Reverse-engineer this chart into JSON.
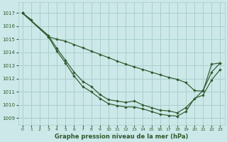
{
  "bg_color": "#cce8e8",
  "grid_color": "#aacfcf",
  "line_color": "#2d5a2d",
  "xlabel": "Graphe pression niveau de la mer (hPa)",
  "xlim": [
    -0.5,
    23.5
  ],
  "ylim": [
    1008.5,
    1017.8
  ],
  "yticks": [
    1009,
    1010,
    1011,
    1012,
    1013,
    1014,
    1015,
    1016,
    1017
  ],
  "xticks": [
    0,
    1,
    2,
    3,
    4,
    5,
    6,
    7,
    8,
    9,
    10,
    11,
    12,
    13,
    14,
    15,
    16,
    17,
    18,
    19,
    20,
    21,
    22,
    23
  ],
  "s1": {
    "x": [
      0,
      1
    ],
    "y": [
      1017.0,
      1016.5
    ]
  },
  "s2": {
    "x": [
      0,
      3,
      4,
      5,
      6,
      7,
      8,
      9,
      10,
      11,
      12,
      13,
      14,
      15,
      16,
      17,
      18,
      19,
      21,
      22,
      23
    ],
    "y": [
      1017.0,
      1015.3,
      1014.3,
      1013.4,
      1012.5,
      1011.8,
      1011.4,
      1010.8,
      1010.4,
      1010.3,
      1010.2,
      1010.3,
      1010.0,
      1009.8,
      1009.6,
      1009.55,
      1009.4,
      1009.8,
      1011.1,
      1012.5,
      1013.2
    ]
  },
  "s3": {
    "x": [
      0,
      3,
      4,
      5,
      6,
      7,
      8,
      9,
      10,
      11,
      12,
      13,
      14,
      15,
      16,
      17,
      18,
      19,
      20,
      21,
      22,
      23
    ],
    "y": [
      1017.0,
      1015.2,
      1014.1,
      1013.2,
      1012.2,
      1011.4,
      1011.0,
      1010.5,
      1010.1,
      1009.95,
      1009.85,
      1009.85,
      1009.7,
      1009.5,
      1009.3,
      1009.2,
      1009.15,
      1009.5,
      1010.5,
      1010.75,
      1011.9,
      1012.7
    ]
  },
  "s4": {
    "x": [
      0,
      3,
      4,
      5,
      6,
      7,
      8,
      9,
      10,
      11,
      12,
      13,
      14,
      15,
      16,
      17,
      18,
      19,
      20,
      21,
      22,
      23
    ],
    "y": [
      1017.0,
      1015.2,
      1015.0,
      1014.85,
      1014.6,
      1014.35,
      1014.1,
      1013.85,
      1013.6,
      1013.35,
      1013.1,
      1012.9,
      1012.7,
      1012.5,
      1012.3,
      1012.1,
      1011.95,
      1011.7,
      1011.1,
      1011.05,
      1013.1,
      1013.2
    ]
  }
}
